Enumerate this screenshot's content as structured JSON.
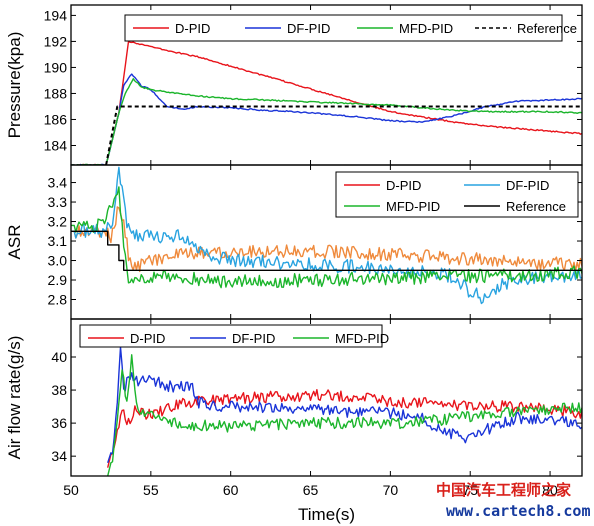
{
  "chart_data": [
    {
      "type": "line",
      "ylabel": "Pressure(kpa)",
      "ylim": [
        182.5,
        194.8
      ],
      "yticks": [
        184,
        186,
        188,
        190,
        192,
        194
      ],
      "xlim": [
        50,
        82
      ],
      "legend_position": "top",
      "series": [
        {
          "name": "D-PID",
          "color": "#e8141b",
          "x": [
            50,
            52.2,
            53,
            53.6,
            54,
            55,
            56,
            58,
            60,
            62,
            64,
            66,
            68,
            70,
            72,
            74,
            76,
            78,
            80,
            82
          ],
          "y": [
            182.5,
            182.5,
            186.5,
            192,
            191.9,
            191.6,
            191.3,
            190.8,
            190.1,
            189.4,
            188.7,
            188,
            187.3,
            186.6,
            186.2,
            185.8,
            185.5,
            185.3,
            185.1,
            184.9
          ]
        },
        {
          "name": "DF-PID",
          "color": "#1a34d8",
          "x": [
            50,
            52.2,
            53,
            53.3,
            53.8,
            54.4,
            55,
            56,
            57,
            58,
            60,
            62,
            64,
            66,
            68,
            70,
            72,
            74,
            76,
            78,
            80,
            82
          ],
          "y": [
            182.5,
            182.5,
            186.5,
            188.6,
            189.5,
            188.6,
            188.3,
            187,
            186.8,
            187,
            186.9,
            186.7,
            186.6,
            186.4,
            186.2,
            185.9,
            185.8,
            186.3,
            187,
            187.4,
            187.5,
            187.6
          ]
        },
        {
          "name": "MFD-PID",
          "color": "#1cb52c",
          "x": [
            50,
            52.2,
            53,
            53.4,
            53.9,
            54.4,
            55,
            56,
            58,
            60,
            62,
            64,
            66,
            68,
            70,
            72,
            74,
            76,
            78,
            80,
            82
          ],
          "y": [
            182.5,
            182.5,
            186.5,
            188,
            189.1,
            188.5,
            188.3,
            188.1,
            187.8,
            187.6,
            187.5,
            187.4,
            187.3,
            187.2,
            187.1,
            186.9,
            186.7,
            186.6,
            186.6,
            186.6,
            186.5
          ]
        },
        {
          "name": "Reference",
          "color": "#000000",
          "dashed": true,
          "x": [
            52.2,
            52.9,
            53,
            82
          ],
          "y": [
            182.5,
            187,
            187,
            187
          ]
        }
      ]
    },
    {
      "type": "line",
      "ylabel": "ASR",
      "ylim": [
        2.7,
        3.49
      ],
      "yticks": [
        2.8,
        2.9,
        3.0,
        3.1,
        3.2,
        3.3,
        3.4
      ],
      "xlim": [
        50,
        82
      ],
      "legend_position": "top-right",
      "series": [
        {
          "name": "D-PID",
          "color": "#e8141b",
          "line_color": "#ef8a3c",
          "x": [
            50,
            52,
            52.5,
            53,
            53.3,
            53.6,
            54,
            55,
            57,
            60,
            65,
            70,
            75,
            78,
            82
          ],
          "y": [
            3.15,
            3.15,
            3.12,
            3.28,
            3.2,
            3.03,
            2.97,
            3.0,
            3.03,
            3.05,
            3.05,
            3.03,
            3.01,
            2.99,
            2.98
          ]
        },
        {
          "name": "DF-PID",
          "color": "#29a3e0",
          "x": [
            50,
            52,
            52.6,
            53,
            53.2,
            53.5,
            54,
            55,
            56,
            57,
            58,
            60,
            65,
            70,
            72,
            74,
            75,
            76,
            77,
            78,
            80,
            82
          ],
          "y": [
            3.15,
            3.15,
            3.18,
            3.47,
            3.35,
            3.2,
            3.13,
            3.12,
            3.12,
            3.13,
            3.04,
            3.0,
            2.98,
            2.96,
            2.94,
            2.92,
            2.84,
            2.8,
            2.88,
            2.9,
            2.92,
            2.92
          ]
        },
        {
          "name": "MFD-PID",
          "color": "#1cb52c",
          "x": [
            50,
            52,
            52.7,
            53,
            53.3,
            53.6,
            54,
            55,
            57,
            60,
            65,
            70,
            75,
            80,
            82
          ],
          "y": [
            3.18,
            3.18,
            3.3,
            3.35,
            3.1,
            2.92,
            2.9,
            2.92,
            2.91,
            2.89,
            2.9,
            2.91,
            2.92,
            2.93,
            2.94
          ]
        },
        {
          "name": "Reference",
          "color": "#000000",
          "step": true,
          "x": [
            50,
            52.3,
            52.3,
            53,
            53,
            53.3,
            53.3,
            82
          ],
          "y": [
            3.15,
            3.15,
            3.08,
            3.08,
            3.0,
            3.0,
            2.95,
            2.95
          ]
        }
      ]
    },
    {
      "type": "line",
      "ylabel": "Air flow rate(g/s)",
      "xlabel": "Time(s)",
      "ylim": [
        32.8,
        42.3
      ],
      "yticks": [
        34,
        36,
        38,
        40
      ],
      "xlim": [
        50,
        82
      ],
      "xticks": [
        50,
        55,
        60,
        65,
        70,
        75,
        80
      ],
      "legend_position": "top-left",
      "series": [
        {
          "name": "D-PID",
          "color": "#e8141b",
          "x": [
            52.3,
            52.6,
            52.9,
            53.2,
            53.6,
            54,
            55,
            57,
            60,
            63,
            66,
            68,
            70,
            73,
            75,
            78,
            80,
            82
          ],
          "y": [
            33.3,
            34.5,
            35.5,
            37,
            36,
            36.8,
            36.5,
            37.2,
            37.5,
            37.6,
            37.7,
            37.6,
            37.3,
            37.2,
            37,
            37,
            36.8,
            36.6
          ]
        },
        {
          "name": "DF-PID",
          "color": "#1a34d8",
          "x": [
            52.3,
            52.6,
            52.9,
            53.1,
            53.3,
            53.7,
            54.2,
            55,
            56,
            57.5,
            58,
            60,
            65,
            70,
            72,
            73,
            74,
            75,
            76,
            77,
            78,
            80,
            82
          ],
          "y": [
            33.6,
            34.5,
            37,
            40.8,
            38,
            38.8,
            38.5,
            38.7,
            38.2,
            38.3,
            37.2,
            37,
            36.8,
            36.6,
            36.3,
            35.7,
            35.3,
            35,
            35.6,
            36,
            36.3,
            36.1,
            36
          ]
        },
        {
          "name": "MFD-PID",
          "color": "#1cb52c",
          "x": [
            52.3,
            52.6,
            52.9,
            53.2,
            53.5,
            53.8,
            54.2,
            55,
            57,
            60,
            63,
            66,
            70,
            72,
            75,
            78,
            80,
            82
          ],
          "y": [
            32.8,
            34,
            36.5,
            39.5,
            37,
            40,
            36.5,
            36.5,
            35.9,
            35.8,
            35.9,
            36,
            36,
            36.1,
            36.4,
            36.7,
            36.8,
            37
          ]
        }
      ]
    }
  ],
  "watermark": {
    "line1": "中国汽车工程师之家",
    "line2": "www.cartech8.com"
  }
}
